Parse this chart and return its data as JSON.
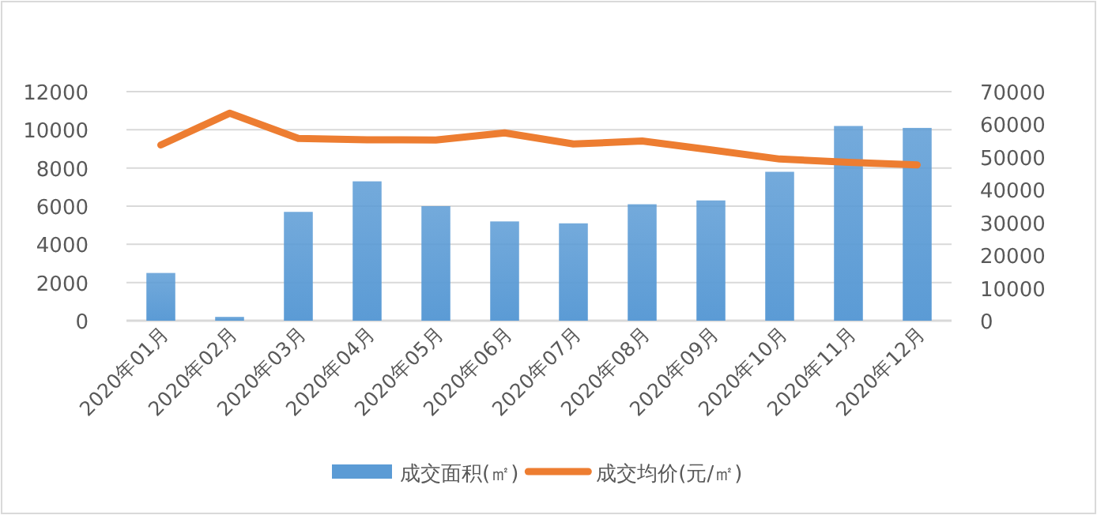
{
  "chart_data": {
    "type": "bar",
    "categories": [
      "2020年01月",
      "2020年02月",
      "2020年03月",
      "2020年04月",
      "2020年05月",
      "2020年06月",
      "2020年07月",
      "2020年08月",
      "2020年09月",
      "2020年10月",
      "2020年11月",
      "2020年12月"
    ],
    "series": [
      {
        "name": "成交面积(㎡)",
        "color": "#5b9bd5",
        "values": [
          2500,
          200,
          5700,
          7300,
          6000,
          5200,
          5100,
          6100,
          6300,
          7800,
          10200,
          10100
        ]
      },
      {
        "name": "成交均价(元/㎡)",
        "type": "line",
        "axis": "y2",
        "color": "#ed7d31",
        "values": [
          53700,
          63400,
          55700,
          55300,
          55200,
          57400,
          54000,
          54900,
          52200,
          49400,
          48400,
          47600
        ]
      }
    ],
    "ylim": [
      0,
      12000
    ],
    "yticks": [
      0,
      2000,
      4000,
      6000,
      8000,
      10000,
      12000
    ],
    "y2lim": [
      0,
      70000
    ],
    "y2ticks": [
      0,
      10000,
      20000,
      30000,
      40000,
      50000,
      60000,
      70000
    ],
    "grid": "y",
    "legend": "bottom"
  }
}
